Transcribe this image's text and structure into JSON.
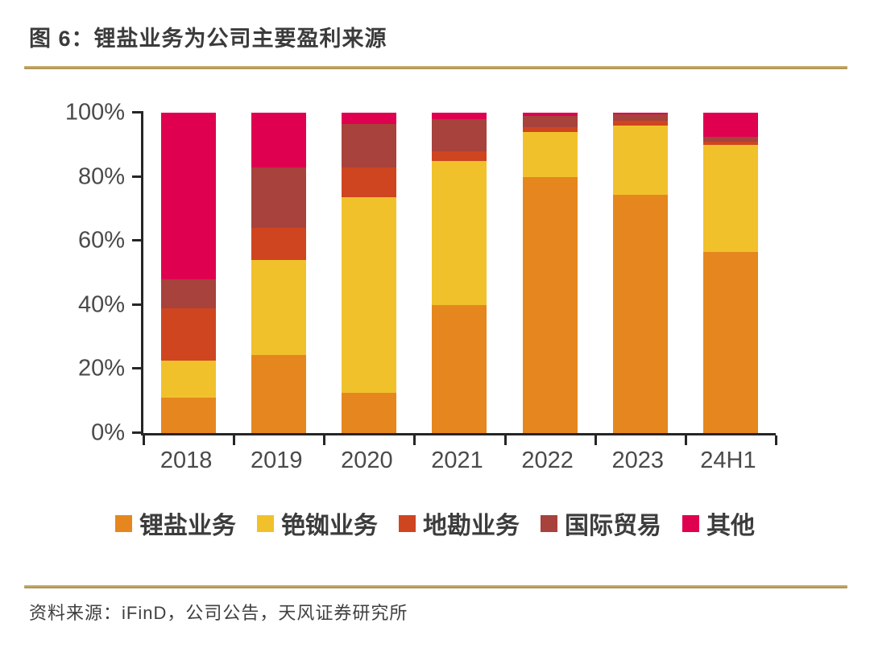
{
  "figure": {
    "title": "图 6：锂盐业务为公司主要盈利来源",
    "source": "资料来源：iFinD，公司公告，天风证券研究所"
  },
  "chart_data": {
    "type": "bar",
    "stacked": true,
    "title": "锂盐业务为公司主要盈利来源",
    "categories": [
      "2018",
      "2019",
      "2020",
      "2021",
      "2022",
      "2023",
      "24H1"
    ],
    "series": [
      {
        "name": "锂盐业务",
        "color": "#E5871E",
        "values": [
          11,
          24.5,
          12.5,
          40,
          80,
          74.5,
          56.5
        ]
      },
      {
        "name": "铯铷业务",
        "color": "#F1C12C",
        "values": [
          11.5,
          29.5,
          61,
          45,
          14,
          21.5,
          33.5
        ]
      },
      {
        "name": "地勘业务",
        "color": "#CF4520",
        "values": [
          16.5,
          10,
          9.5,
          3,
          1.5,
          1.5,
          1
        ]
      },
      {
        "name": "国际贸易",
        "color": "#A7423C",
        "values": [
          9,
          19,
          13.5,
          10,
          3.5,
          2,
          1.5
        ]
      },
      {
        "name": "其他",
        "color": "#DF0050",
        "values": [
          52,
          17,
          3.5,
          2,
          1,
          0.5,
          7.5
        ]
      }
    ],
    "ylim": [
      0,
      100
    ],
    "y_ticks": [
      "0%",
      "20%",
      "40%",
      "60%",
      "80%",
      "100%"
    ],
    "xlabel": "",
    "ylabel": "",
    "grid": false,
    "legend_position": "bottom"
  },
  "style": {
    "separator_color": "#B79B58",
    "axis_color": "#262626"
  }
}
